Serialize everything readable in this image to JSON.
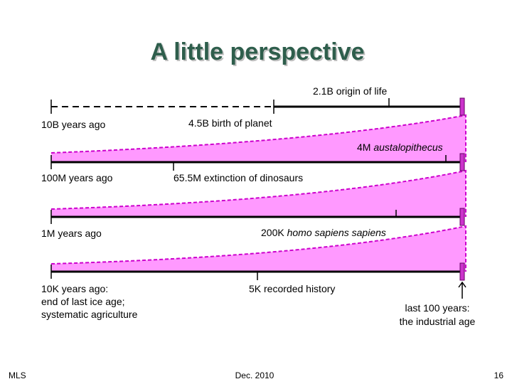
{
  "title": "A little perspective",
  "timelines": [
    {
      "start_label": "10B years ago",
      "marks": [
        {
          "text": "4.5B birth of planet"
        },
        {
          "text": "2.1B origin of life"
        }
      ]
    },
    {
      "start_label": "100M years ago",
      "marks": [
        {
          "text": "65.5M extinction of dinosaurs"
        },
        {
          "prefix": "4M",
          "italic": "austalopithecus"
        }
      ]
    },
    {
      "start_label": "1M years ago",
      "marks": [
        {
          "prefix": "200K",
          "italic": "homo sapiens sapiens"
        }
      ]
    },
    {
      "start_label": [
        "10K years ago:",
        "end of last ice age;",
        "systematic agriculture"
      ],
      "marks": [
        {
          "text": "5K recorded history"
        }
      ]
    }
  ],
  "present_label": [
    "last 100 years:",
    "the industrial age"
  ],
  "footer": {
    "left": "MLS",
    "center": "Dec. 2010",
    "right": "16"
  }
}
